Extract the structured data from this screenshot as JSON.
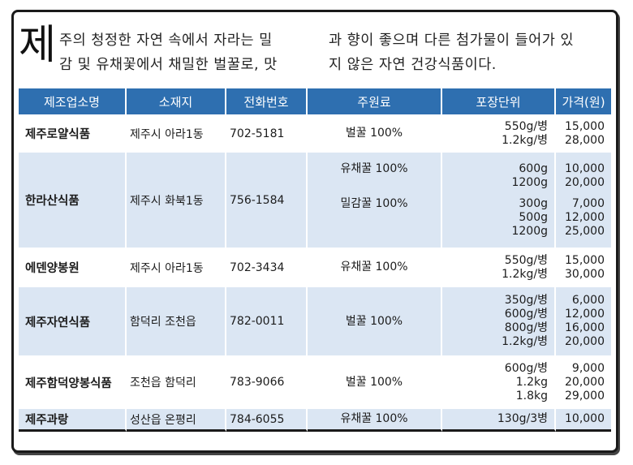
{
  "intro": {
    "big_char": "제",
    "line1_left": "주의 청정한 자연 속에서 자라는 밀",
    "line2_left": "감 및 유채꽃에서 채밀한 벌꿀로, 맛",
    "line1_right": "과 향이 좋으며 다른 첨가물이 들어가 있",
    "line2_right": "지 않은 자연 건강식품이다."
  },
  "table": {
    "headers": [
      "제조업소명",
      "소재지",
      "전화번호",
      "주원료",
      "포장단위",
      "가격(원)"
    ],
    "header_color": "#2e6fb0",
    "alt_row_color": "#dbe6f3",
    "rows": [
      {
        "name": "제주로얄식품",
        "location": "제주시 아라1동",
        "phone": "702-5181",
        "ingredient": [
          "벌꿀 100%"
        ],
        "units": [
          "550g/병",
          "1.2kg/병"
        ],
        "prices": [
          "15,000",
          "28,000"
        ]
      },
      {
        "name": "한라산식품",
        "location": "제주시 화북1동",
        "phone": "756-1584",
        "ingredient": [
          "유채꿀 100%",
          "밀감꿀 100%"
        ],
        "units": [
          "600g",
          "1200g",
          "300g",
          "500g",
          "1200g"
        ],
        "prices": [
          "10,000",
          "20,000",
          "7,000",
          "12,000",
          "25,000"
        ]
      },
      {
        "name": "에덴양봉원",
        "location": "제주시 아라1동",
        "phone": "702-3434",
        "ingredient": [
          "유채꿀 100%"
        ],
        "units": [
          "550g/병",
          "1.2kg/병"
        ],
        "prices": [
          "15,000",
          "30,000"
        ]
      },
      {
        "name": "제주자연식품",
        "location": "함덕리 조천읍",
        "phone": "782-0011",
        "ingredient": [
          "벌꿀 100%"
        ],
        "units": [
          "350g/병",
          "600g/병",
          "800g/병",
          "1.2kg/병"
        ],
        "prices": [
          "6,000",
          "12,000",
          "16,000",
          "20,000"
        ]
      },
      {
        "name": "제주함덕양봉식품",
        "location": "조천읍 함덕리",
        "phone": "783-9066",
        "ingredient": [
          "벌꿀 100%"
        ],
        "units": [
          "600g/병",
          "1.2kg",
          "1.8kg"
        ],
        "prices": [
          "9,000",
          "20,000",
          "29,000"
        ]
      },
      {
        "name": "제주과랑",
        "location": "성산읍 온평리",
        "phone": "784-6055",
        "ingredient": [
          "유채꿀 100%"
        ],
        "units": [
          "130g/3병"
        ],
        "prices": [
          "10,000"
        ]
      }
    ]
  }
}
